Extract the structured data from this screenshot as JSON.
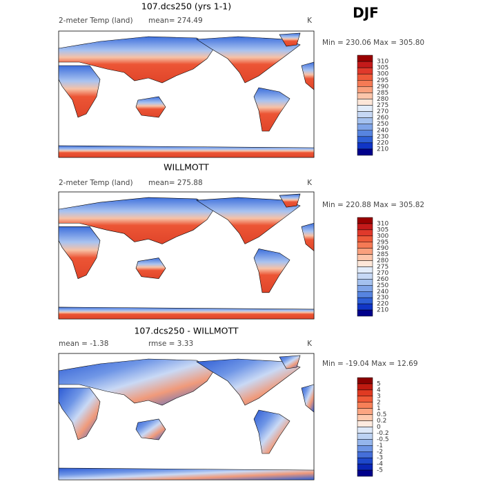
{
  "title": "DJF",
  "panels": [
    {
      "title": "107.dcs250 (yrs 1-1)",
      "variable": "2-meter Temp (land)",
      "stats": [
        "mean= 274.49"
      ],
      "unit": "K",
      "range": "Min = 230.06 Max = 305.80",
      "colorbar": {
        "labels": [
          "310",
          "305",
          "300",
          "295",
          "290",
          "285",
          "280",
          "275",
          "270",
          "260",
          "250",
          "240",
          "230",
          "220",
          "210"
        ],
        "colors": [
          "#990000",
          "#c41a1a",
          "#e0392b",
          "#ee5a3a",
          "#f57a55",
          "#f9a07d",
          "#fcc5aa",
          "#fde6d8",
          "#e2ecfa",
          "#c6d8f5",
          "#a4c1ef",
          "#7fa4e8",
          "#5784e0",
          "#2e5fd6",
          "#1035c6",
          "#00008b"
        ]
      }
    },
    {
      "title": "WILLMOTT",
      "variable": "2-meter Temp (land)",
      "stats": [
        "mean= 275.88"
      ],
      "unit": "K",
      "range": "Min = 220.88 Max = 305.82",
      "colorbar": {
        "labels": [
          "310",
          "305",
          "300",
          "295",
          "290",
          "285",
          "280",
          "275",
          "270",
          "260",
          "250",
          "240",
          "230",
          "220",
          "210"
        ],
        "colors": [
          "#990000",
          "#c41a1a",
          "#e0392b",
          "#ee5a3a",
          "#f57a55",
          "#f9a07d",
          "#fcc5aa",
          "#fde6d8",
          "#e2ecfa",
          "#c6d8f5",
          "#a4c1ef",
          "#7fa4e8",
          "#5784e0",
          "#2e5fd6",
          "#1035c6",
          "#00008b"
        ]
      }
    },
    {
      "title": "107.dcs250 - WILLMOTT",
      "variable": "mean =  -1.38",
      "stats": [
        "rmse =   3.33"
      ],
      "unit": "K",
      "range": "Min = -19.04 Max =   12.69",
      "colorbar": {
        "labels": [
          "5",
          "4",
          "3",
          "2",
          "1",
          "0.5",
          "0.2",
          "0",
          "-0.2",
          "-0.5",
          "-1",
          "-2",
          "-3",
          "-4",
          "-5"
        ],
        "colors": [
          "#8b0000",
          "#c01a10",
          "#e03a22",
          "#f05a38",
          "#f78058",
          "#fba582",
          "#fdc9ae",
          "#feeadf",
          "#dde8f8",
          "#bcd2f3",
          "#95b5ec",
          "#6d94e4",
          "#456fd9",
          "#1e48cb",
          "#0a25b5",
          "#00008b"
        ]
      }
    }
  ]
}
